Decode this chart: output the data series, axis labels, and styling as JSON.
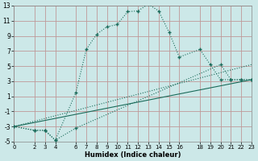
{
  "xlabel": "Humidex (Indice chaleur)",
  "bg_color": "#cce8e8",
  "grid_color": "#bf9999",
  "line_color": "#1a6b5a",
  "curve1_x": [
    0,
    2,
    3,
    4,
    6,
    7,
    8,
    9,
    10,
    11,
    12,
    13,
    14,
    15,
    16,
    18,
    19,
    20,
    21,
    22,
    23
  ],
  "curve1_y": [
    -3,
    -3.5,
    -3.5,
    -4.8,
    1.5,
    7.2,
    9.2,
    10.2,
    10.5,
    12.2,
    12.3,
    13.2,
    12.3,
    9.5,
    6.2,
    7.2,
    5.2,
    3.2,
    3.2,
    3.2,
    3.2
  ],
  "curve2_x": [
    0,
    2,
    3,
    4,
    6,
    20,
    21,
    22,
    23
  ],
  "curve2_y": [
    -3,
    -3.5,
    -3.5,
    -4.8,
    -3.2,
    5.2,
    3.2,
    3.2,
    3.2
  ],
  "line1_x": [
    0,
    23
  ],
  "line1_y": [
    -3,
    3.2
  ],
  "line2_x": [
    0,
    23
  ],
  "line2_y": [
    -3,
    5.2
  ],
  "xlim": [
    0,
    23
  ],
  "ylim": [
    -5,
    13
  ],
  "xticks": [
    0,
    2,
    3,
    4,
    6,
    7,
    8,
    9,
    10,
    11,
    12,
    13,
    14,
    15,
    16,
    18,
    19,
    20,
    21,
    22,
    23
  ],
  "yticks": [
    -5,
    -3,
    -1,
    1,
    3,
    5,
    7,
    9,
    11,
    13
  ]
}
